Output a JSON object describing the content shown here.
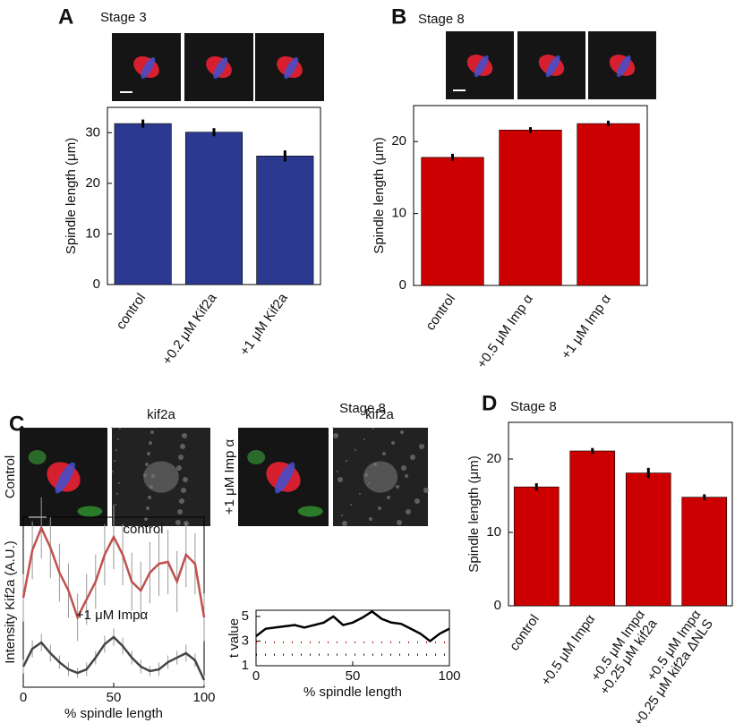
{
  "chart_data": [
    {
      "type": "bar",
      "panel": "A",
      "title": "Stage 3",
      "ylabel": "Spindle length (μm)",
      "categories": [
        "control",
        "+0.2 μM Kif2a",
        "+1 μM Kif2a"
      ],
      "values": [
        31.8,
        30.1,
        25.4
      ],
      "errors": [
        0.8,
        0.8,
        1.1
      ],
      "color": "#2b3990",
      "ylim": [
        0,
        35
      ],
      "yticks": [
        0,
        10,
        20,
        30
      ]
    },
    {
      "type": "bar",
      "panel": "B",
      "title": "Stage 8",
      "ylabel": "Spindle length (μm)",
      "categories": [
        "control",
        "+0.5 μM Imp α",
        "+1 μM Imp α"
      ],
      "values": [
        17.8,
        21.6,
        22.5
      ],
      "errors": [
        0.5,
        0.4,
        0.4
      ],
      "color": "#cc0000",
      "ylim": [
        0,
        25
      ],
      "yticks": [
        0,
        10,
        20
      ]
    },
    {
      "type": "line",
      "panel": "C",
      "title": "Stage 8",
      "image_labels": [
        "Control",
        "kif2a",
        "+1 μM Imp α",
        "kif2a"
      ],
      "ylabel": "Intensity Kif2a (A.U.)",
      "xlabel": "% spindle length",
      "annotations": [
        "control",
        "+1 μM Impα"
      ],
      "x": [
        0,
        5,
        10,
        15,
        20,
        25,
        30,
        35,
        40,
        45,
        50,
        55,
        60,
        65,
        70,
        75,
        80,
        85,
        90,
        95,
        100
      ],
      "series": [
        {
          "color": "#c0504d",
          "values": [
            52.6,
            80.5,
            93.7,
            82.1,
            67.4,
            56.8,
            41.1,
            51.6,
            62.1,
            77.9,
            88.4,
            77.9,
            62.1,
            56.8,
            67.4,
            72.6,
            73.7,
            62.1,
            77.9,
            72.6,
            41.1
          ],
          "errors": [
            14,
            17,
            18,
            18,
            17,
            16,
            14,
            15,
            16,
            18,
            19,
            18,
            17,
            17,
            18,
            19,
            19,
            18,
            19,
            18,
            14
          ]
        },
        {
          "color": "#444444",
          "values": [
            12.1,
            22.6,
            26.3,
            20,
            14.7,
            10.5,
            8.4,
            10.5,
            17.4,
            25.3,
            29.5,
            24.2,
            17.4,
            12.1,
            9.5,
            10.5,
            14.7,
            17.4,
            20,
            15.8,
            4.2
          ],
          "errors": [
            4,
            5,
            5,
            5,
            4,
            4,
            3,
            4,
            4,
            5,
            5,
            5,
            4,
            4,
            3,
            4,
            4,
            4,
            5,
            4,
            3
          ]
        }
      ],
      "xlim": [
        0,
        100
      ],
      "xticks": [
        0,
        50,
        100
      ],
      "ylim": [
        0,
        100
      ]
    },
    {
      "type": "line",
      "ylabel": "t value",
      "xlabel": "% spindle length",
      "x": [
        0,
        5,
        10,
        15,
        20,
        25,
        30,
        35,
        40,
        45,
        50,
        55,
        60,
        65,
        70,
        75,
        80,
        85,
        90,
        95,
        100
      ],
      "series": [
        {
          "color": "#000000",
          "values": [
            3.4,
            4.0,
            4.1,
            4.2,
            4.3,
            4.1,
            4.3,
            4.5,
            5.0,
            4.3,
            4.5,
            4.9,
            5.4,
            4.8,
            4.5,
            4.4,
            4.0,
            3.6,
            3.0,
            3.6,
            4.0
          ]
        }
      ],
      "thresholds": [
        {
          "value": 2.9,
          "color": "#cc0000"
        },
        {
          "value": 1.9,
          "color": "#000000"
        }
      ],
      "xlim": [
        0,
        100
      ],
      "xticks": [
        0,
        50,
        100
      ],
      "ylim": [
        1,
        5.5
      ],
      "yticks": [
        1,
        3,
        5
      ]
    },
    {
      "type": "bar",
      "panel": "D",
      "title": "Stage 8",
      "ylabel": "Spindle length (μm)",
      "categories": [
        [
          "control"
        ],
        [
          "+0.5 μM Impα"
        ],
        [
          "+0.5 μM Impα",
          "+0.25 μM kif2a"
        ],
        [
          "+0.5 μM Impα",
          "+0.25 μM kif2a ΔNLS"
        ]
      ],
      "values": [
        16.2,
        21.1,
        18.1,
        14.8
      ],
      "errors": [
        0.5,
        0.4,
        0.7,
        0.4
      ],
      "color": "#cc0000",
      "ylim": [
        0,
        25
      ],
      "yticks": [
        0,
        10,
        20
      ]
    }
  ]
}
